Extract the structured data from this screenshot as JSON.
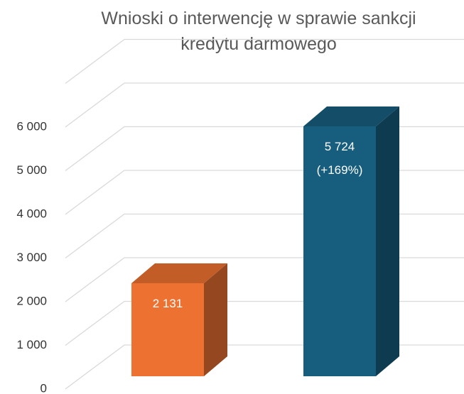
{
  "chart_data": {
    "type": "bar3d",
    "title": "Wnioski o interwencję w sprawie sankcji kredytu darmowego",
    "categories": [
      null,
      null
    ],
    "values": [
      2131,
      5724
    ],
    "value_labels": [
      "2 131",
      "5 724\n(+169%)"
    ],
    "colors": [
      "#ED7131",
      "#175E7E"
    ],
    "ylim": [
      0,
      7000
    ],
    "yticks": [
      0,
      {
        "value": 1000,
        "label": "1 000"
      },
      {
        "value": 2000,
        "label": "2 000"
      },
      {
        "value": 3000,
        "label": "3 000"
      },
      {
        "value": 4000,
        "label": "4 000"
      },
      {
        "value": 5000,
        "label": "5 000"
      },
      {
        "value": 6000,
        "label": "6 000"
      }
    ],
    "grid": true
  }
}
